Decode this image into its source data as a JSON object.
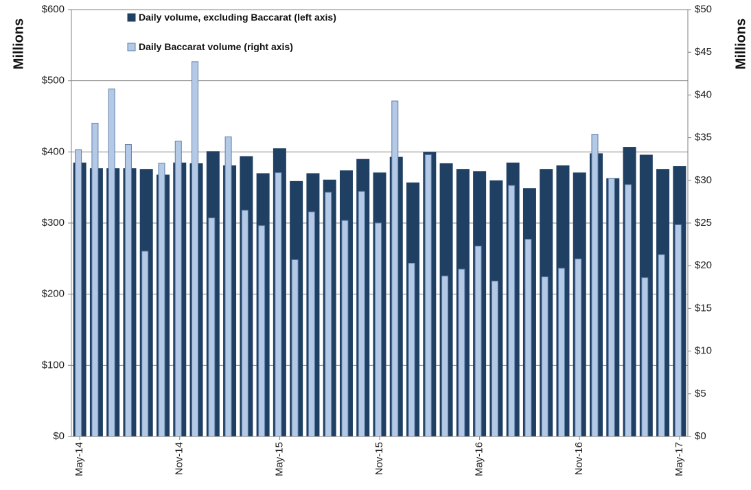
{
  "chart_data": {
    "type": "bar",
    "title": "",
    "colors": {
      "left_series": "#1F3F63",
      "right_series": "#B3C9E6",
      "right_series_edge": "#5F7FA8",
      "grid": "#808080",
      "axis": "#808080"
    },
    "left_axis": {
      "label": "Millions",
      "min": 0,
      "max": 600,
      "ticks": [
        "$0",
        "$100",
        "$200",
        "$300",
        "$400",
        "$500",
        "$600"
      ]
    },
    "right_axis": {
      "label": "Millions",
      "min": 0,
      "max": 50,
      "ticks": [
        "$0",
        "$5",
        "$10",
        "$15",
        "$20",
        "$25",
        "$30",
        "$35",
        "$40",
        "$45",
        "$50"
      ]
    },
    "x_tick_labels": [
      {
        "index": 0,
        "label": "May-14"
      },
      {
        "index": 6,
        "label": "Nov-14"
      },
      {
        "index": 12,
        "label": "May-15"
      },
      {
        "index": 18,
        "label": "Nov-15"
      },
      {
        "index": 24,
        "label": "May-16"
      },
      {
        "index": 30,
        "label": "Nov-16"
      },
      {
        "index": 36,
        "label": "May-17"
      }
    ],
    "categories": [
      "May-14",
      "Jun-14",
      "Jul-14",
      "Aug-14",
      "Sep-14",
      "Oct-14",
      "Nov-14",
      "Dec-14",
      "Jan-15",
      "Feb-15",
      "Mar-15",
      "Apr-15",
      "May-15",
      "Jun-15",
      "Jul-15",
      "Aug-15",
      "Sep-15",
      "Oct-15",
      "Nov-15",
      "Dec-15",
      "Jan-16",
      "Feb-16",
      "Mar-16",
      "Apr-16",
      "May-16",
      "Jun-16",
      "Jul-16",
      "Aug-16",
      "Sep-16",
      "Oct-16",
      "Nov-16",
      "Dec-16",
      "Jan-17",
      "Feb-17",
      "Mar-17",
      "Apr-17",
      "May-17"
    ],
    "series": [
      {
        "name": "Daily volume, excluding Baccarat (left axis)",
        "axis": "left",
        "values": [
          385,
          377,
          377,
          377,
          376,
          368,
          385,
          384,
          401,
          381,
          394,
          370,
          405,
          359,
          370,
          361,
          374,
          390,
          371,
          393,
          357,
          400,
          384,
          376,
          373,
          360,
          385,
          349,
          376,
          381,
          371,
          398,
          363,
          407,
          396,
          376,
          380
        ]
      },
      {
        "name": "Daily Baccarat volume (right axis)",
        "axis": "right",
        "values": [
          33.6,
          36.7,
          40.7,
          34.2,
          21.7,
          32.0,
          34.6,
          43.9,
          25.6,
          35.1,
          26.5,
          24.7,
          30.9,
          20.7,
          26.3,
          28.6,
          25.3,
          28.7,
          25.0,
          39.3,
          20.3,
          33.0,
          18.8,
          19.6,
          22.3,
          18.2,
          29.4,
          23.1,
          18.7,
          19.7,
          20.8,
          35.4,
          30.2,
          29.5,
          18.6,
          21.3,
          24.8
        ]
      }
    ],
    "legend": {
      "placement": "top-left",
      "entries": [
        "Daily volume, excluding Baccarat (left axis)",
        "Daily Baccarat volume (right axis)"
      ]
    },
    "grid": true
  }
}
